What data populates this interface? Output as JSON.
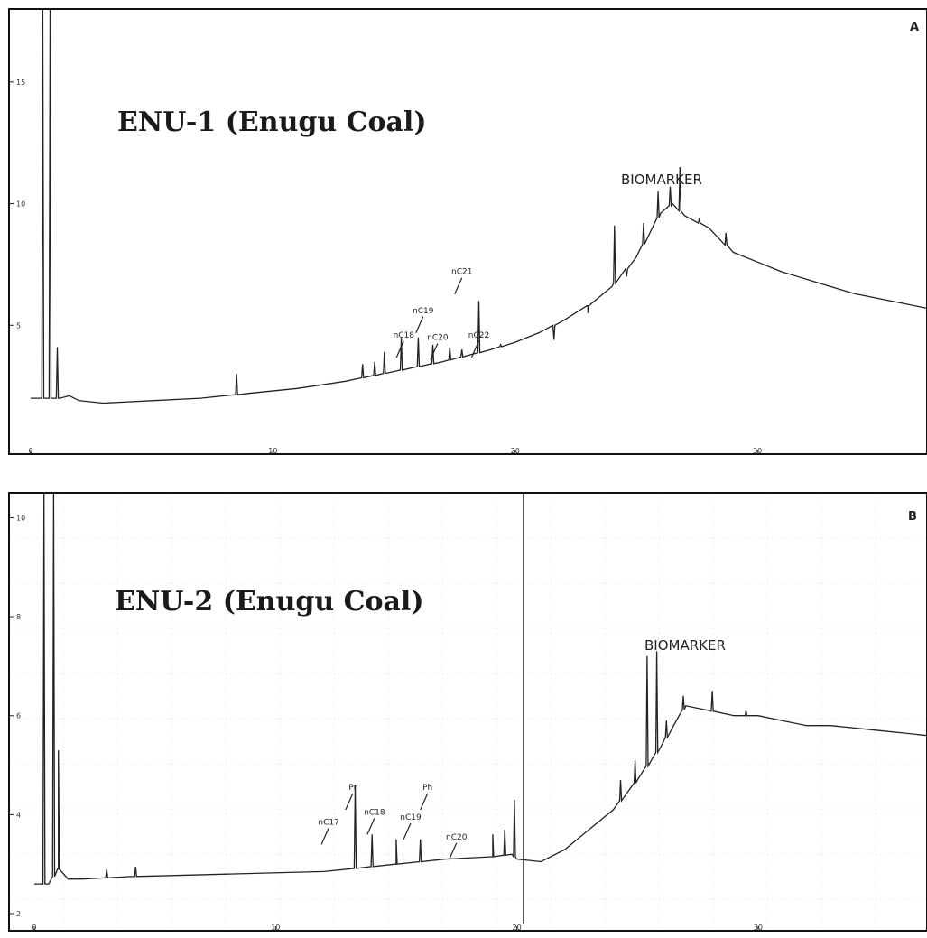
{
  "chart_data": [
    {
      "type": "line",
      "panel_letter": "A",
      "title": "ENU-1 (Enugu Coal)",
      "annotation": "BIOMARKER",
      "xlim": [
        0,
        37
      ],
      "ylim": [
        0,
        18
      ],
      "xticks": [
        0,
        10,
        20,
        30
      ],
      "yticks": [
        5,
        10,
        15
      ],
      "xtick_labels": [
        "0",
        "10",
        "20",
        "30"
      ],
      "ytick_labels": [
        "5",
        "10",
        "15"
      ],
      "baseline": [
        [
          0.0,
          2.0
        ],
        [
          1.2,
          2.0
        ],
        [
          1.6,
          2.1
        ],
        [
          2.0,
          1.9
        ],
        [
          3.0,
          1.8
        ],
        [
          5.0,
          1.9
        ],
        [
          7.0,
          2.0
        ],
        [
          9.0,
          2.2
        ],
        [
          11.0,
          2.4
        ],
        [
          13.0,
          2.7
        ],
        [
          15.0,
          3.1
        ],
        [
          17.0,
          3.5
        ],
        [
          19.0,
          4.0
        ],
        [
          20.0,
          4.3
        ],
        [
          21.0,
          4.7
        ],
        [
          22.0,
          5.2
        ],
        [
          23.0,
          5.8
        ],
        [
          24.0,
          6.6
        ],
        [
          25.0,
          7.8
        ],
        [
          26.0,
          9.6
        ],
        [
          26.5,
          10.0
        ],
        [
          27.0,
          9.5
        ],
        [
          28.0,
          9.0
        ],
        [
          29.0,
          8.0
        ],
        [
          30.0,
          7.6
        ],
        [
          31.0,
          7.2
        ],
        [
          32.0,
          6.9
        ],
        [
          33.0,
          6.6
        ],
        [
          34.0,
          6.3
        ],
        [
          35.0,
          6.1
        ],
        [
          36.0,
          5.9
        ],
        [
          37.0,
          5.7
        ]
      ],
      "peaks": [
        [
          0.5,
          18.0
        ],
        [
          0.8,
          18.0
        ],
        [
          1.1,
          4.1
        ],
        [
          8.5,
          3.0
        ],
        [
          13.7,
          3.4
        ],
        [
          14.2,
          3.5
        ],
        [
          14.6,
          3.9
        ],
        [
          15.3,
          4.5
        ],
        [
          16.0,
          4.5
        ],
        [
          16.6,
          4.2
        ],
        [
          17.3,
          4.1
        ],
        [
          17.8,
          4.0
        ],
        [
          18.5,
          6.0
        ],
        [
          19.4,
          4.2
        ],
        [
          21.6,
          4.4
        ],
        [
          23.0,
          5.5
        ],
        [
          24.1,
          9.1
        ],
        [
          24.6,
          7.0
        ],
        [
          25.3,
          9.2
        ],
        [
          25.9,
          10.5
        ],
        [
          26.4,
          10.7
        ],
        [
          26.8,
          11.5
        ],
        [
          27.6,
          9.4
        ],
        [
          28.7,
          8.8
        ]
      ],
      "peak_labels": [
        {
          "text": "nC18",
          "x": 15.4,
          "y": 4.5
        },
        {
          "text": "nC19",
          "x": 16.2,
          "y": 5.5
        },
        {
          "text": "nC20",
          "x": 16.8,
          "y": 4.4
        },
        {
          "text": "nC21",
          "x": 17.8,
          "y": 7.1
        },
        {
          "text": "nC22",
          "x": 18.5,
          "y": 4.5
        }
      ]
    },
    {
      "type": "line",
      "panel_letter": "B",
      "title": "ENU-2 (Enugu Coal)",
      "annotation": "BIOMARKER",
      "peak_labels": [
        {
          "text": "Pr",
          "x": 13.2,
          "y": 4.5
        },
        {
          "text": "Ph",
          "x": 16.3,
          "y": 4.5
        },
        {
          "text": "nC17",
          "x": 12.2,
          "y": 3.8
        },
        {
          "text": "nC18",
          "x": 14.1,
          "y": 4.0
        },
        {
          "text": "nC19",
          "x": 15.6,
          "y": 3.9
        },
        {
          "text": "nC20",
          "x": 17.5,
          "y": 3.5
        }
      ],
      "xlim": [
        0,
        37
      ],
      "ylim": [
        1.8,
        10.5
      ],
      "xticks": [
        0,
        10,
        20,
        30
      ],
      "yticks": [
        2,
        4,
        6,
        8,
        10
      ],
      "xtick_labels": [
        "0",
        "10",
        "20",
        "30"
      ],
      "ytick_labels": [
        "2",
        "4",
        "6",
        "8",
        "10"
      ],
      "baseline": [
        [
          0.0,
          2.6
        ],
        [
          0.6,
          2.6
        ],
        [
          1.0,
          2.9
        ],
        [
          1.4,
          2.7
        ],
        [
          2.0,
          2.7
        ],
        [
          4.0,
          2.75
        ],
        [
          8.0,
          2.8
        ],
        [
          12.0,
          2.85
        ],
        [
          13.0,
          2.9
        ],
        [
          15.0,
          3.0
        ],
        [
          17.0,
          3.1
        ],
        [
          19.0,
          3.15
        ],
        [
          19.8,
          3.2
        ],
        [
          20.0,
          3.1
        ],
        [
          21.0,
          3.05
        ],
        [
          22.0,
          3.3
        ],
        [
          23.0,
          3.7
        ],
        [
          24.0,
          4.1
        ],
        [
          25.0,
          4.7
        ],
        [
          26.0,
          5.4
        ],
        [
          26.5,
          5.8
        ],
        [
          27.0,
          6.2
        ],
        [
          28.0,
          6.1
        ],
        [
          29.0,
          6.0
        ],
        [
          30.0,
          6.0
        ],
        [
          31.0,
          5.9
        ],
        [
          32.0,
          5.8
        ],
        [
          33.0,
          5.8
        ],
        [
          34.0,
          5.75
        ],
        [
          35.0,
          5.7
        ],
        [
          36.0,
          5.65
        ],
        [
          37.0,
          5.6
        ]
      ],
      "peaks": [
        [
          0.4,
          10.5
        ],
        [
          0.8,
          10.5
        ],
        [
          1.0,
          5.3
        ],
        [
          3.0,
          2.9
        ],
        [
          4.2,
          2.95
        ],
        [
          13.3,
          4.6
        ],
        [
          14.0,
          3.6
        ],
        [
          15.0,
          3.5
        ],
        [
          16.0,
          3.5
        ],
        [
          19.0,
          3.6
        ],
        [
          19.5,
          3.7
        ],
        [
          19.9,
          4.3
        ],
        [
          24.3,
          4.7
        ],
        [
          24.9,
          5.1
        ],
        [
          25.4,
          7.2
        ],
        [
          25.8,
          7.3
        ],
        [
          26.2,
          5.9
        ],
        [
          26.9,
          6.4
        ],
        [
          28.1,
          6.5
        ],
        [
          29.5,
          6.1
        ]
      ]
    }
  ]
}
